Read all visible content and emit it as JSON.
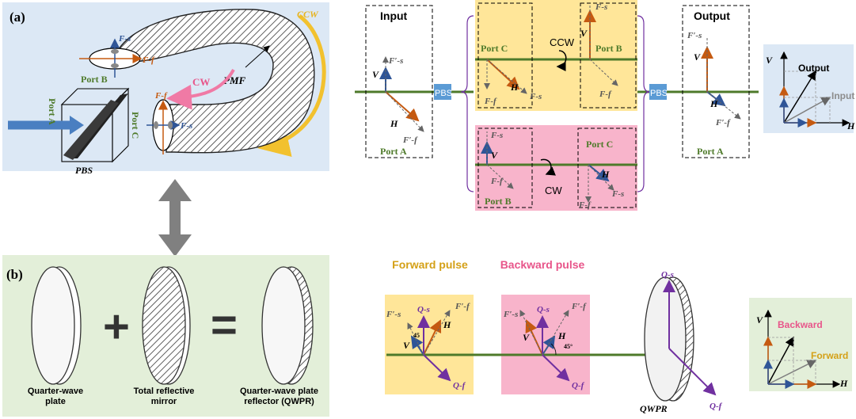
{
  "panel_a": {
    "tag": "(a)",
    "ccw": "CCW",
    "cw": "CW",
    "pmf": "PMF",
    "port_b": "Port B",
    "port_a": "Port A",
    "port_c": "Port C",
    "pbs": "PBS",
    "fs": "F-s",
    "ff": "F-f"
  },
  "panel_b": {
    "tag": "(b)",
    "plus": "+",
    "equals": "=",
    "qwp": "Quarter-wave plate",
    "mirror": "Total reflective mirror",
    "qwpr": "Quarter-wave plate reflector (QWPR)"
  },
  "loop_diagram": {
    "input": "Input",
    "output": "Output",
    "pbs": "PBS",
    "port_a": "Port A",
    "port_b": "Port B",
    "port_c": "Port C",
    "ccw": "CCW",
    "cw": "CW",
    "v": "V",
    "h": "H",
    "fs": "F-s",
    "ff": "F-f",
    "fps": "F′-s",
    "fpf": "F′-f",
    "legend_output": "Output",
    "legend_input": "Input"
  },
  "reflector_diagram": {
    "forward": "Forward pulse",
    "backward": "Backward pulse",
    "qs": "Q-s",
    "qf": "Q-f",
    "angle": "45",
    "angle_deg": "45°",
    "qwpr": "QWPR",
    "legend_backward": "Backward",
    "legend_forward": "Forward",
    "v": "V",
    "h": "H",
    "fps": "F′-s",
    "fpf": "F′-f"
  },
  "colors": {
    "blue_bg": "#dce8f5",
    "green_bg": "#e3efd9",
    "yellow": "#ffe699",
    "pink": "#f8b4cb",
    "green_line": "#4e7a2a",
    "orange": "#c55a11",
    "blue": "#2f5597",
    "purple": "#7030a0",
    "gold": "#f2c12e"
  }
}
